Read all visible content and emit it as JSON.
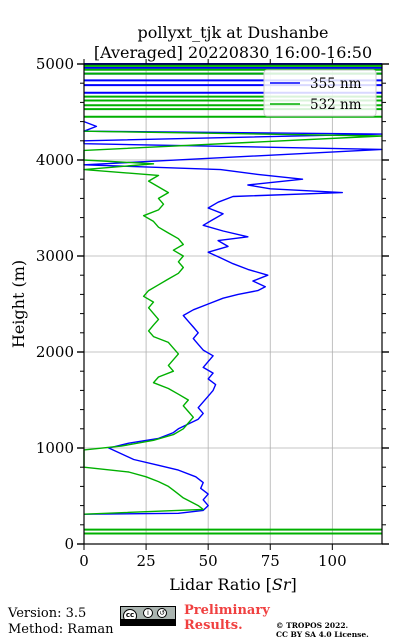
{
  "chart_data": {
    "type": "line",
    "title": "pollyxt_tjk at Dushanbe",
    "subtitle": "[Averaged] 20220830 16:00-16:50",
    "xlabel": "Lidar Ratio [$Sr$]",
    "ylabel": "Height (m)",
    "xlim": [
      0,
      120
    ],
    "ylim": [
      0,
      5000
    ],
    "xticks": [
      "0",
      "25",
      "50",
      "75",
      "100"
    ],
    "yticks": [
      "0",
      "1000",
      "2000",
      "3000",
      "4000",
      "5000"
    ],
    "grid": true,
    "legend_position": "top-right",
    "series": [
      {
        "name": "355 nm",
        "color": "#0000ff",
        "points": [
          [
            0,
            310
          ],
          [
            38,
            320
          ],
          [
            48,
            350
          ],
          [
            50,
            400
          ],
          [
            48,
            460
          ],
          [
            50,
            520
          ],
          [
            47,
            580
          ],
          [
            48,
            640
          ],
          [
            45,
            700
          ],
          [
            38,
            770
          ],
          [
            30,
            820
          ],
          [
            20,
            880
          ],
          [
            10,
            1000
          ],
          [
            18,
            1050
          ],
          [
            30,
            1100
          ],
          [
            36,
            1160
          ],
          [
            38,
            1200
          ],
          [
            42,
            1250
          ],
          [
            46,
            1300
          ],
          [
            48,
            1360
          ],
          [
            46,
            1420
          ],
          [
            48,
            1480
          ],
          [
            50,
            1540
          ],
          [
            52,
            1600
          ],
          [
            53,
            1660
          ],
          [
            50,
            1720
          ],
          [
            52,
            1780
          ],
          [
            48,
            1840
          ],
          [
            50,
            1900
          ],
          [
            52,
            1960
          ],
          [
            48,
            2020
          ],
          [
            46,
            2080
          ],
          [
            44,
            2140
          ],
          [
            46,
            2200
          ],
          [
            44,
            2260
          ],
          [
            42,
            2320
          ],
          [
            40,
            2380
          ],
          [
            44,
            2440
          ],
          [
            50,
            2500
          ],
          [
            56,
            2560
          ],
          [
            62,
            2600
          ],
          [
            70,
            2640
          ],
          [
            73,
            2680
          ],
          [
            68,
            2740
          ],
          [
            74,
            2800
          ],
          [
            66,
            2860
          ],
          [
            60,
            2920
          ],
          [
            55,
            2980
          ],
          [
            50,
            3040
          ],
          [
            58,
            3100
          ],
          [
            54,
            3160
          ],
          [
            66,
            3200
          ],
          [
            56,
            3260
          ],
          [
            48,
            3320
          ],
          [
            52,
            3380
          ],
          [
            56,
            3440
          ],
          [
            50,
            3500
          ],
          [
            54,
            3560
          ],
          [
            60,
            3620
          ],
          [
            104,
            3660
          ],
          [
            75,
            3700
          ],
          [
            66,
            3740
          ],
          [
            88,
            3800
          ],
          [
            70,
            3850
          ],
          [
            55,
            3900
          ],
          [
            0,
            3950
          ],
          [
            120,
            4110
          ],
          [
            0,
            4170
          ],
          [
            0,
            4200
          ],
          [
            120,
            4270
          ],
          [
            0,
            4300
          ],
          [
            5,
            4350
          ],
          [
            0,
            4400
          ]
        ],
        "bands": [
          4620,
          4700,
          4780,
          4830,
          4900,
          4960,
          5000
        ]
      },
      {
        "name": "532 nm",
        "color": "#00b000",
        "points": [
          [
            0,
            310
          ],
          [
            48,
            360
          ],
          [
            46,
            400
          ],
          [
            43,
            440
          ],
          [
            40,
            480
          ],
          [
            38,
            520
          ],
          [
            36,
            560
          ],
          [
            34,
            600
          ],
          [
            30,
            650
          ],
          [
            25,
            700
          ],
          [
            18,
            750
          ],
          [
            0,
            800
          ],
          [
            0,
            980
          ],
          [
            15,
            1020
          ],
          [
            28,
            1080
          ],
          [
            36,
            1140
          ],
          [
            40,
            1200
          ],
          [
            42,
            1260
          ],
          [
            44,
            1320
          ],
          [
            42,
            1380
          ],
          [
            40,
            1440
          ],
          [
            42,
            1500
          ],
          [
            38,
            1560
          ],
          [
            34,
            1620
          ],
          [
            28,
            1680
          ],
          [
            30,
            1740
          ],
          [
            36,
            1800
          ],
          [
            34,
            1860
          ],
          [
            36,
            1920
          ],
          [
            38,
            1980
          ],
          [
            36,
            2040
          ],
          [
            34,
            2100
          ],
          [
            28,
            2160
          ],
          [
            26,
            2220
          ],
          [
            28,
            2280
          ],
          [
            30,
            2340
          ],
          [
            28,
            2400
          ],
          [
            26,
            2460
          ],
          [
            28,
            2520
          ],
          [
            24,
            2580
          ],
          [
            26,
            2640
          ],
          [
            30,
            2700
          ],
          [
            34,
            2760
          ],
          [
            38,
            2820
          ],
          [
            40,
            2880
          ],
          [
            38,
            2940
          ],
          [
            40,
            3000
          ],
          [
            36,
            3060
          ],
          [
            40,
            3120
          ],
          [
            38,
            3180
          ],
          [
            34,
            3240
          ],
          [
            30,
            3300
          ],
          [
            28,
            3360
          ],
          [
            24,
            3420
          ],
          [
            30,
            3480
          ],
          [
            32,
            3540
          ],
          [
            30,
            3600
          ],
          [
            34,
            3660
          ],
          [
            30,
            3720
          ],
          [
            26,
            3780
          ],
          [
            30,
            3840
          ],
          [
            0,
            3900
          ],
          [
            28,
            3960
          ],
          [
            0,
            4000
          ],
          [
            0,
            4100
          ],
          [
            120,
            4250
          ],
          [
            0,
            4300
          ]
        ],
        "bands": [
          110,
          150,
          4450,
          4530,
          4570,
          4620,
          4660,
          4900,
          4940,
          4980
        ]
      }
    ]
  },
  "footer": {
    "version": "Version: 3.5",
    "method": "Method: Raman",
    "preliminary_line1": "Preliminary",
    "preliminary_line2": "Results.",
    "copyright_line1": "© TROPOS 2022.",
    "copyright_line2": "CC BY SA 4.0 License."
  }
}
